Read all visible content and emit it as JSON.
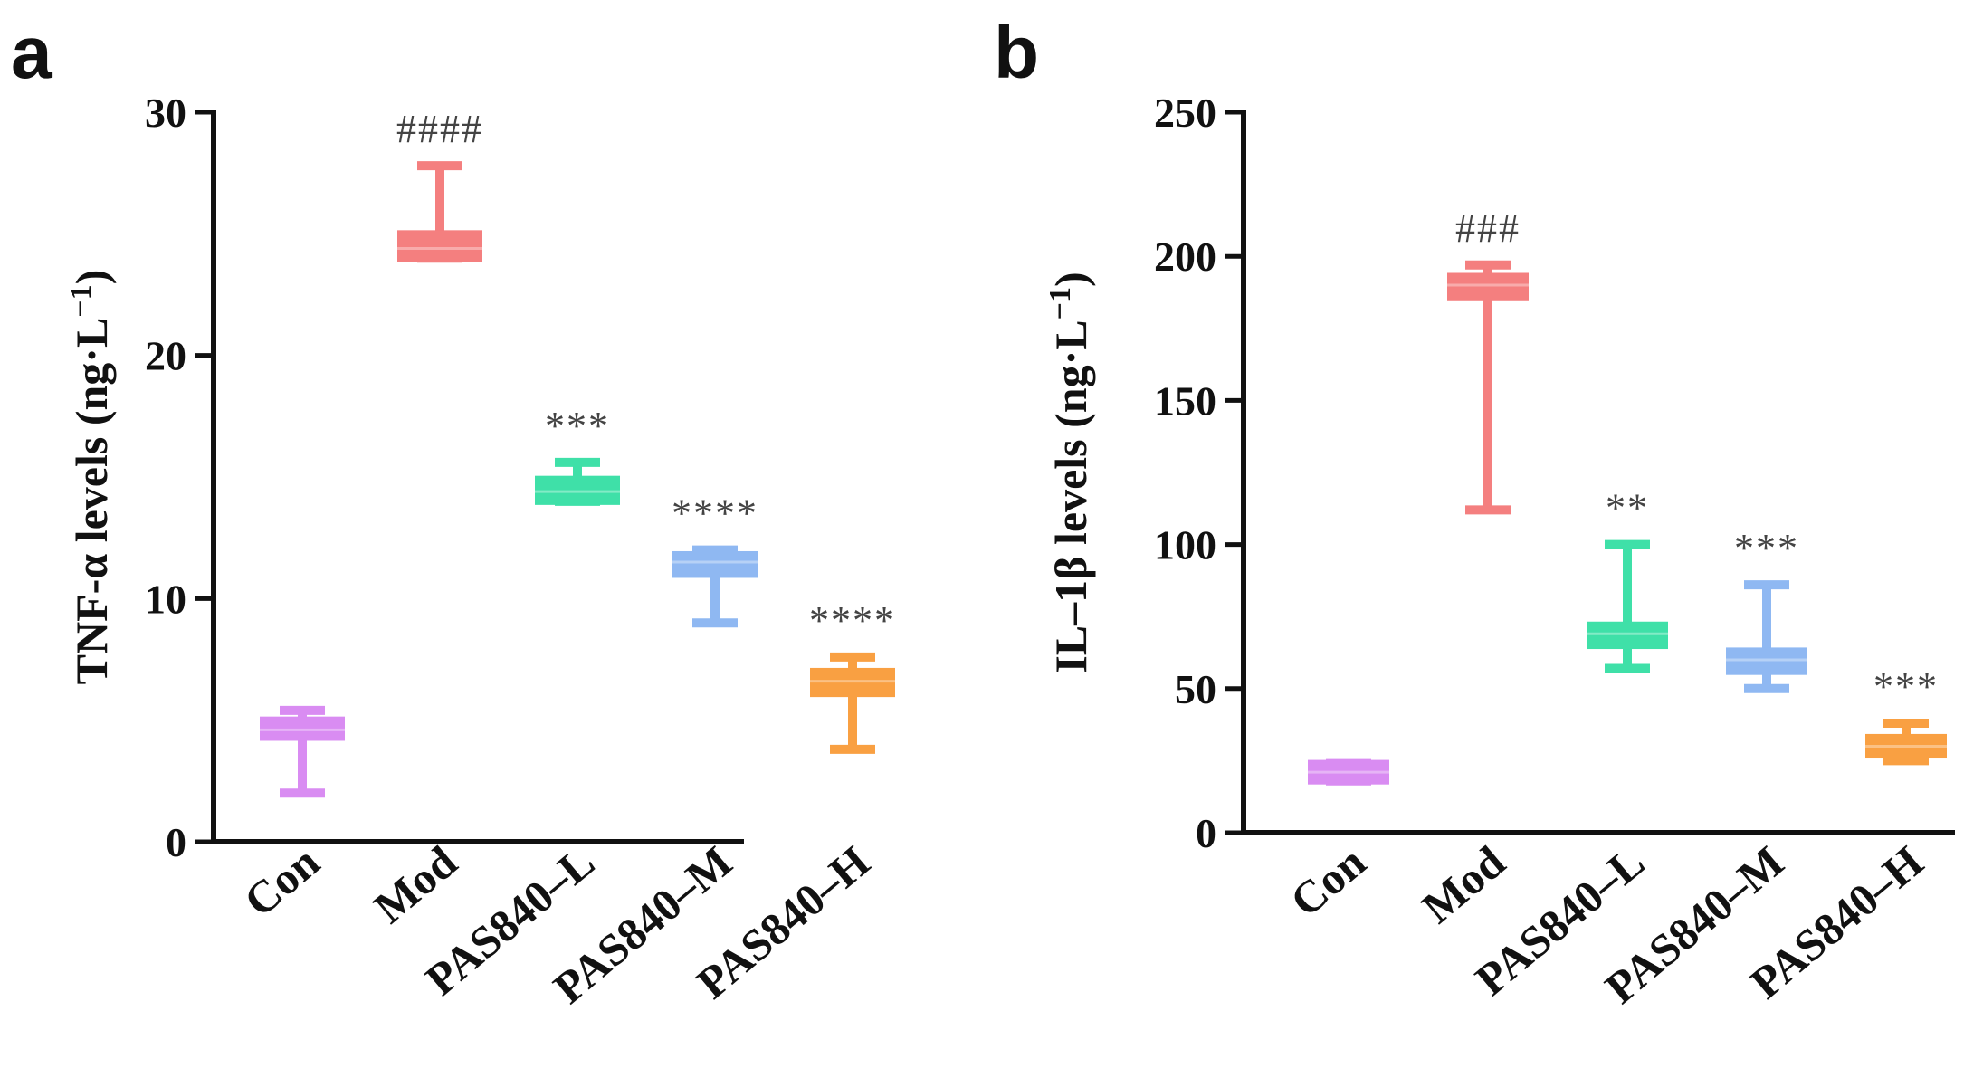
{
  "chart_data": [
    {
      "panel": "a",
      "type": "box",
      "ylabel": "TNF-α levels (ng·L",
      "ylabel_superscript": "−1",
      "ylabel_close": ")",
      "ylim": [
        0,
        30
      ],
      "yticks": [
        0,
        10,
        20,
        30
      ],
      "categories": [
        "Con",
        "Mod",
        "PAS840–L",
        "PAS840–M",
        "PAS840–H"
      ],
      "colors": [
        "#d98cf2",
        "#f47f7f",
        "#3fe0a8",
        "#8fb8f2",
        "#f9a042"
      ],
      "boxes": [
        {
          "min": 2.0,
          "q1": 4.3,
          "median": 4.6,
          "q3": 5.0,
          "max": 5.4
        },
        {
          "min": 24.0,
          "q1": 24.0,
          "median": 24.4,
          "q3": 25.0,
          "max": 27.8
        },
        {
          "min": 14.0,
          "q1": 14.0,
          "median": 14.4,
          "q3": 14.9,
          "max": 15.6
        },
        {
          "min": 9.0,
          "q1": 11.0,
          "median": 11.5,
          "q3": 11.8,
          "max": 12.0
        },
        {
          "min": 3.8,
          "q1": 6.1,
          "median": 6.6,
          "q3": 7.0,
          "max": 7.6
        }
      ],
      "significance": [
        "",
        "####",
        "***",
        "****",
        "****"
      ]
    },
    {
      "panel": "b",
      "type": "box",
      "ylabel": "IL–1β levels (ng·L",
      "ylabel_superscript": "−1",
      "ylabel_close": ")",
      "ylim": [
        0,
        250
      ],
      "yticks": [
        0,
        50,
        100,
        150,
        200,
        250
      ],
      "categories": [
        "Con",
        "Mod",
        "PAS840–L",
        "PAS840–M",
        "PAS840–H"
      ],
      "colors": [
        "#d98cf2",
        "#f47f7f",
        "#3fe0a8",
        "#8fb8f2",
        "#f9a042"
      ],
      "boxes": [
        {
          "min": 18.0,
          "q1": 18.0,
          "median": 21.0,
          "q3": 24.0,
          "max": 24.0
        },
        {
          "min": 112.0,
          "q1": 186.0,
          "median": 190.0,
          "q3": 193.0,
          "max": 197.0
        },
        {
          "min": 57.0,
          "q1": 65.0,
          "median": 69.0,
          "q3": 72.0,
          "max": 100.0
        },
        {
          "min": 50.0,
          "q1": 56.0,
          "median": 60.0,
          "q3": 63.0,
          "max": 86.0
        },
        {
          "min": 25.0,
          "q1": 27.0,
          "median": 30.0,
          "q3": 33.0,
          "max": 38.0
        }
      ],
      "significance": [
        "",
        "###",
        "**",
        "***",
        "***"
      ]
    }
  ]
}
